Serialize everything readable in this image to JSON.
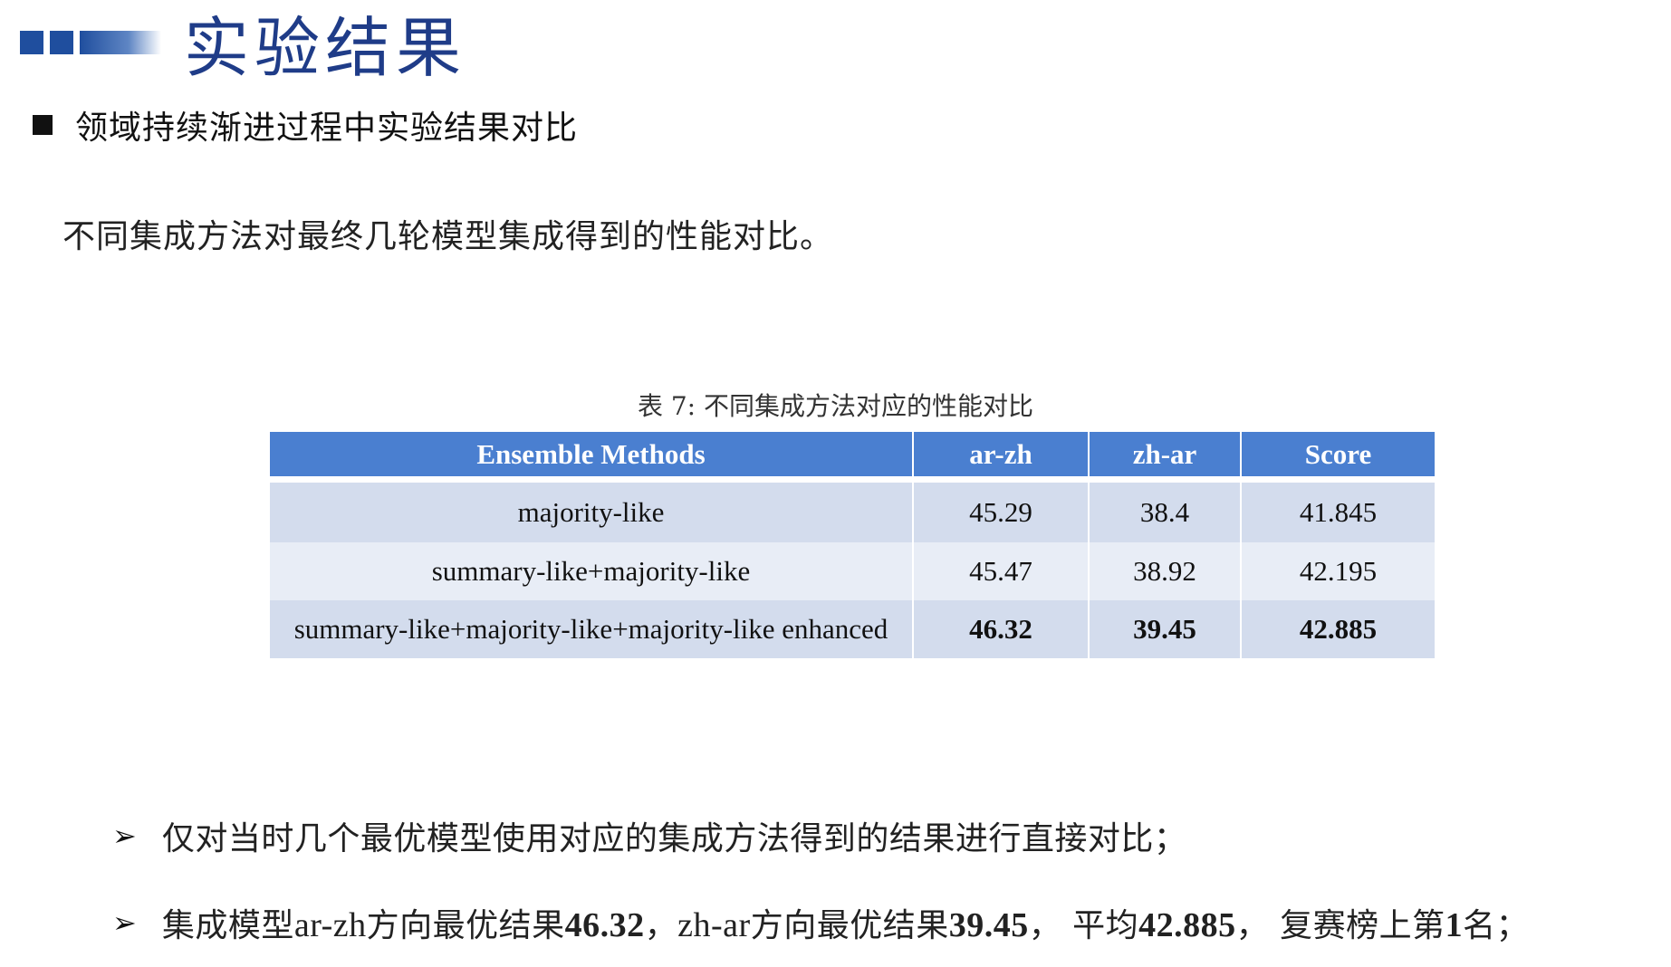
{
  "slide": {
    "title": "实验结果",
    "subheading": "领域持续渐进过程中实验结果对比",
    "description": "不同集成方法对最终几轮模型集成得到的性能对比。"
  },
  "table": {
    "caption": "表 7: 不同集成方法对应的性能对比",
    "headers": [
      "Ensemble Methods",
      "ar-zh",
      "zh-ar",
      "Score"
    ],
    "rows": [
      [
        "majority-like",
        "45.29",
        "38.4",
        "41.845"
      ],
      [
        "summary-like+majority-like",
        "45.47",
        "38.92",
        "42.195"
      ],
      [
        "summary-like+majority-like+majority-like enhanced",
        "46.32",
        "39.45",
        "42.885"
      ]
    ]
  },
  "points": {
    "p1": "仅对当时几个最优模型使用对应的集成方法得到的结果进行直接对比；",
    "p2": {
      "s1": "集成模型",
      "s2": "ar-zh",
      "s3": "方向最优结果",
      "s4": "46.32",
      "s5": "，",
      "s6": "zh-ar",
      "s7": "方向最优结果",
      "s8": "39.45",
      "s9": "，  平均",
      "s10": "42.885",
      "s11": "，  复赛榜上第",
      "s12": "1",
      "s13": "名；"
    }
  },
  "colors": {
    "title": "#1f3c88",
    "header_bg": "#4a7fd0",
    "row_dark": "#d3dced",
    "row_light": "#e8edf6",
    "deco": "#1f4e9e"
  }
}
